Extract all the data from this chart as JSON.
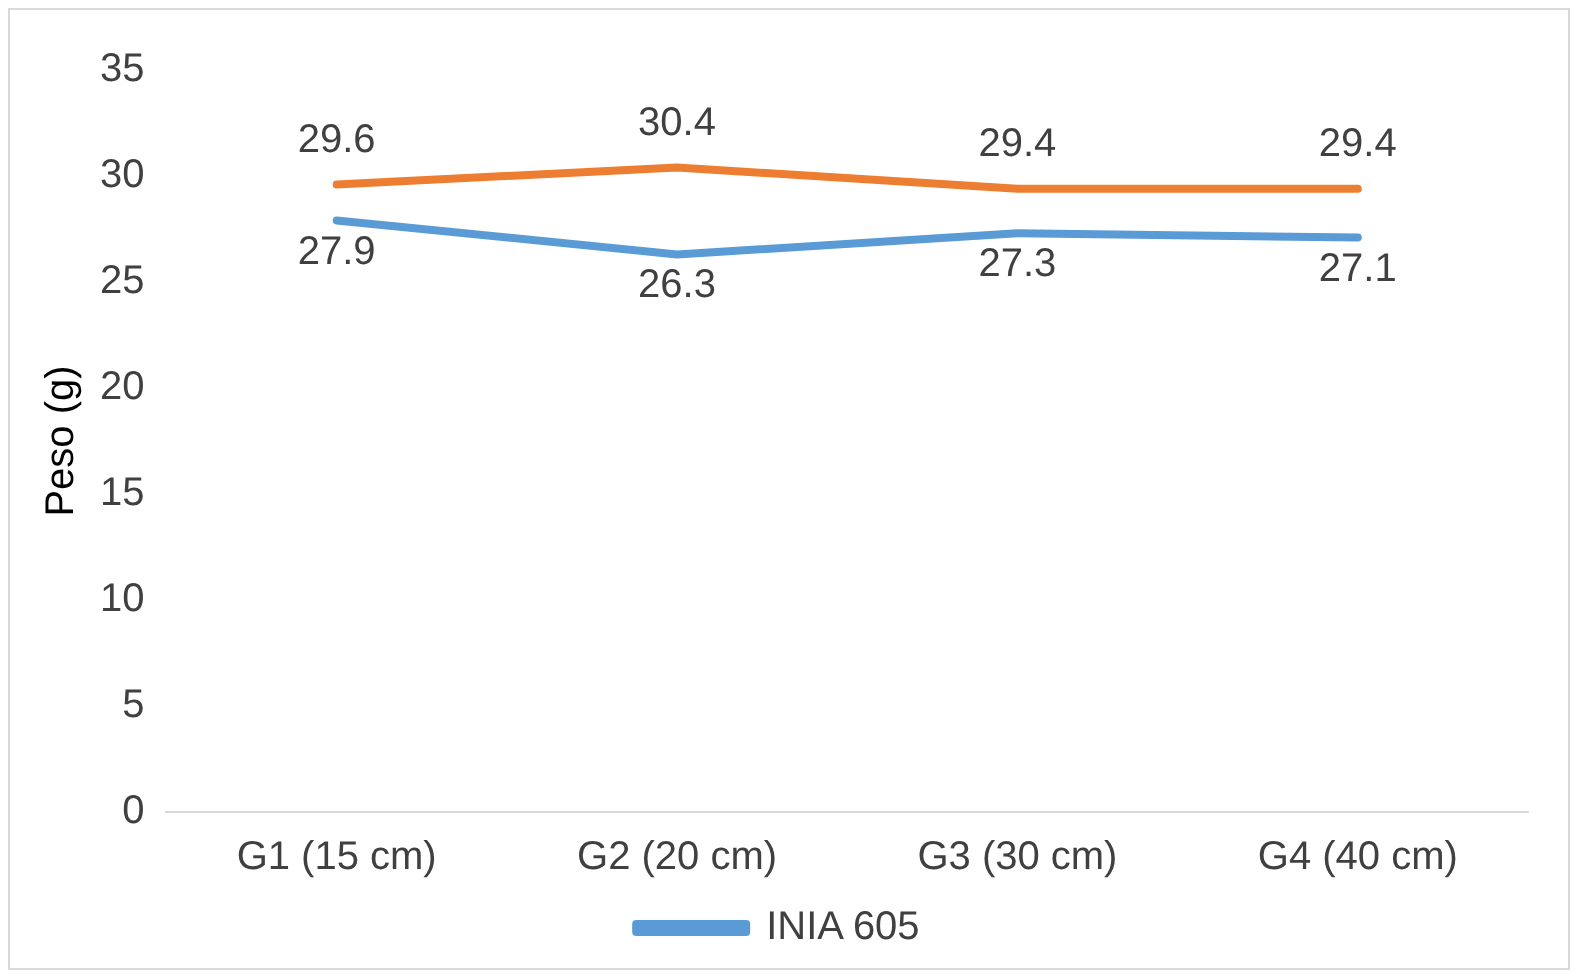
{
  "chart_data": {
    "type": "line",
    "ylabel": "Peso (g)",
    "categories": [
      "G1 (15 cm)",
      "G2 (20 cm)",
      "G3 (30 cm)",
      "G4 (40 cm)"
    ],
    "series": [
      {
        "name": "INIA 605",
        "color": "#5b9bd5",
        "values": [
          27.9,
          26.3,
          27.3,
          27.1
        ]
      },
      {
        "color": "#ed7d31",
        "values": [
          29.6,
          30.4,
          29.4,
          29.4
        ]
      }
    ],
    "ylim": [
      0,
      35
    ],
    "yticks": [
      0,
      5,
      10,
      15,
      20,
      25,
      30,
      35
    ],
    "grid": false,
    "legend": "bottom",
    "marker": "none",
    "line_style": "solid",
    "data_labels": true
  }
}
